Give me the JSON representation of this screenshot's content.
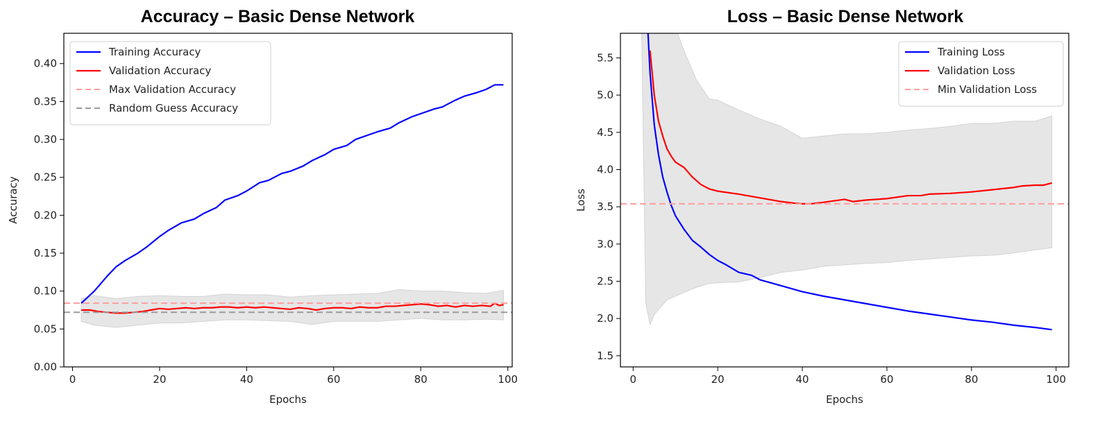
{
  "colors": {
    "training": "#0000ff",
    "validation": "#ff0000",
    "best_line": "#ff9d9d",
    "random_line": "#9a9a9a",
    "band_fill": "#e6e6e6",
    "band_stroke": "#d4d4d4"
  },
  "chart_data": [
    {
      "type": "line",
      "title": "Accuracy – Basic Dense Network",
      "xlabel": "Epochs",
      "ylabel": "Accuracy",
      "xlim": [
        -2,
        101
      ],
      "ylim": [
        0,
        0.44
      ],
      "xticks": [
        0,
        20,
        40,
        60,
        80,
        100
      ],
      "yticks": [
        0.0,
        0.05,
        0.1,
        0.15,
        0.2,
        0.25,
        0.3,
        0.35,
        0.4
      ],
      "ytick_labels": [
        "0.00",
        "0.05",
        "0.10",
        "0.15",
        "0.20",
        "0.25",
        "0.30",
        "0.35",
        "0.40"
      ],
      "grid": false,
      "legend": "top-left",
      "series": [
        {
          "name": "Training Accuracy",
          "color": "#0000ff",
          "x": [
            2,
            5,
            8,
            10,
            12,
            15,
            17,
            20,
            22,
            25,
            28,
            30,
            33,
            35,
            38,
            40,
            43,
            45,
            48,
            50,
            53,
            55,
            58,
            60,
            63,
            65,
            68,
            70,
            73,
            75,
            78,
            80,
            83,
            85,
            88,
            90,
            93,
            95,
            97,
            99
          ],
          "y": [
            0.084,
            0.1,
            0.12,
            0.132,
            0.14,
            0.15,
            0.158,
            0.172,
            0.18,
            0.19,
            0.195,
            0.202,
            0.21,
            0.22,
            0.226,
            0.232,
            0.243,
            0.246,
            0.255,
            0.258,
            0.265,
            0.272,
            0.28,
            0.287,
            0.292,
            0.3,
            0.306,
            0.31,
            0.315,
            0.322,
            0.33,
            0.334,
            0.34,
            0.343,
            0.352,
            0.357,
            0.362,
            0.366,
            0.372,
            0.372
          ]
        },
        {
          "name": "Validation Accuracy",
          "color": "#ff0000",
          "x": [
            2,
            4,
            6,
            8,
            10,
            12,
            14,
            16,
            18,
            20,
            22,
            24,
            26,
            28,
            30,
            32,
            34,
            36,
            38,
            40,
            42,
            44,
            46,
            48,
            50,
            52,
            54,
            56,
            58,
            60,
            62,
            64,
            66,
            68,
            70,
            72,
            74,
            76,
            78,
            80,
            82,
            84,
            86,
            88,
            90,
            92,
            94,
            96,
            97,
            98,
            99
          ],
          "y": [
            0.075,
            0.075,
            0.073,
            0.072,
            0.071,
            0.071,
            0.072,
            0.073,
            0.075,
            0.077,
            0.076,
            0.077,
            0.078,
            0.077,
            0.078,
            0.078,
            0.079,
            0.079,
            0.078,
            0.079,
            0.078,
            0.079,
            0.078,
            0.077,
            0.076,
            0.078,
            0.077,
            0.075,
            0.077,
            0.078,
            0.078,
            0.077,
            0.079,
            0.078,
            0.078,
            0.08,
            0.08,
            0.081,
            0.082,
            0.083,
            0.082,
            0.08,
            0.081,
            0.079,
            0.081,
            0.08,
            0.081,
            0.08,
            0.084,
            0.081,
            0.082
          ]
        },
        {
          "name": "Max Validation Accuracy",
          "style": "dashed",
          "color": "#ff9d9d",
          "value": 0.084
        },
        {
          "name": "Random Guess Accuracy",
          "style": "dashed",
          "color": "#9a9a9a",
          "value": 0.072
        }
      ],
      "band": {
        "x": [
          2,
          5,
          10,
          15,
          20,
          25,
          30,
          35,
          40,
          45,
          50,
          55,
          60,
          65,
          70,
          75,
          80,
          85,
          90,
          95,
          99
        ],
        "upper": [
          0.09,
          0.094,
          0.09,
          0.093,
          0.094,
          0.093,
          0.093,
          0.096,
          0.095,
          0.095,
          0.092,
          0.094,
          0.095,
          0.096,
          0.097,
          0.102,
          0.1,
          0.1,
          0.098,
          0.097,
          0.101
        ],
        "lower": [
          0.06,
          0.055,
          0.052,
          0.055,
          0.058,
          0.058,
          0.06,
          0.062,
          0.062,
          0.061,
          0.06,
          0.056,
          0.06,
          0.06,
          0.06,
          0.062,
          0.064,
          0.062,
          0.062,
          0.063,
          0.062
        ]
      }
    },
    {
      "type": "line",
      "title": "Loss – Basic Dense Network",
      "xlabel": "Epochs",
      "ylabel": "Loss",
      "xlim": [
        -3,
        103
      ],
      "ylim": [
        1.35,
        5.83
      ],
      "xticks": [
        0,
        20,
        40,
        60,
        80,
        100
      ],
      "yticks": [
        1.5,
        2.0,
        2.5,
        3.0,
        3.5,
        4.0,
        4.5,
        5.0,
        5.5
      ],
      "ytick_labels": [
        "1.5",
        "2.0",
        "2.5",
        "3.0",
        "3.5",
        "4.0",
        "4.5",
        "5.0",
        "5.5"
      ],
      "grid": false,
      "legend": "top-right",
      "series": [
        {
          "name": "Training Loss",
          "color": "#0000ff",
          "x": [
            3.5,
            4,
            5,
            6,
            7,
            8,
            9,
            10,
            12,
            14,
            16,
            18,
            20,
            22,
            25,
            28,
            30,
            35,
            40,
            45,
            50,
            55,
            60,
            65,
            70,
            75,
            80,
            85,
            90,
            95,
            99
          ],
          "y": [
            5.85,
            5.3,
            4.6,
            4.2,
            3.9,
            3.7,
            3.52,
            3.38,
            3.2,
            3.05,
            2.96,
            2.86,
            2.78,
            2.72,
            2.62,
            2.58,
            2.52,
            2.44,
            2.36,
            2.3,
            2.25,
            2.2,
            2.15,
            2.1,
            2.06,
            2.02,
            1.98,
            1.95,
            1.91,
            1.88,
            1.85
          ]
        },
        {
          "name": "Validation Loss",
          "color": "#ff0000",
          "x": [
            4,
            5,
            6,
            7,
            8,
            9,
            10,
            12,
            14,
            16,
            18,
            20,
            25,
            30,
            35,
            38,
            40,
            42,
            45,
            50,
            52,
            55,
            60,
            65,
            68,
            70,
            75,
            80,
            85,
            90,
            92,
            95,
            97,
            99
          ],
          "y": [
            5.6,
            5.0,
            4.65,
            4.45,
            4.28,
            4.18,
            4.1,
            4.03,
            3.9,
            3.8,
            3.74,
            3.71,
            3.67,
            3.62,
            3.57,
            3.55,
            3.54,
            3.54,
            3.56,
            3.6,
            3.57,
            3.59,
            3.61,
            3.65,
            3.65,
            3.67,
            3.68,
            3.7,
            3.73,
            3.76,
            3.78,
            3.79,
            3.79,
            3.82
          ]
        },
        {
          "name": "Min Validation Loss",
          "style": "dashed",
          "color": "#ff9d9d",
          "value": 3.54
        }
      ],
      "band": {
        "x": [
          2,
          3,
          4,
          5,
          6,
          8,
          10,
          12,
          15,
          18,
          20,
          25,
          30,
          35,
          40,
          45,
          50,
          55,
          60,
          65,
          70,
          75,
          80,
          85,
          90,
          95,
          99
        ],
        "upper": [
          5.9,
          6.2,
          6.2,
          6.2,
          6.2,
          6.0,
          5.9,
          5.6,
          5.2,
          4.95,
          4.93,
          4.8,
          4.68,
          4.58,
          4.42,
          4.45,
          4.48,
          4.48,
          4.5,
          4.53,
          4.55,
          4.58,
          4.62,
          4.62,
          4.65,
          4.65,
          4.72
        ],
        "lower": [
          5.9,
          2.2,
          1.92,
          2.05,
          2.12,
          2.25,
          2.3,
          2.35,
          2.42,
          2.47,
          2.48,
          2.49,
          2.55,
          2.62,
          2.65,
          2.7,
          2.72,
          2.74,
          2.75,
          2.78,
          2.8,
          2.82,
          2.84,
          2.85,
          2.88,
          2.92,
          2.95
        ]
      }
    }
  ]
}
